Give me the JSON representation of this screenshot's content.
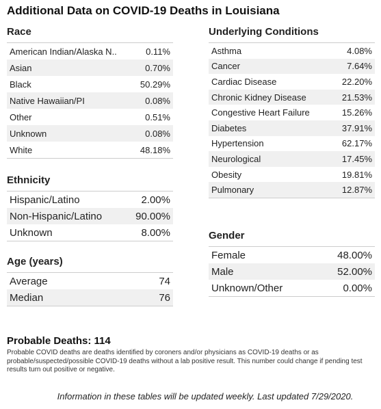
{
  "title": "Additional Data on COVID-19 Deaths in Louisiana",
  "race": {
    "title": "Race",
    "rows": [
      [
        "American Indian/Alaska N..",
        "0.11%"
      ],
      [
        "Asian",
        "0.70%"
      ],
      [
        "Black",
        "50.29%"
      ],
      [
        "Native Hawaiian/PI",
        "0.08%"
      ],
      [
        "Other",
        "0.51%"
      ],
      [
        "Unknown",
        "0.08%"
      ],
      [
        "White",
        "48.18%"
      ]
    ]
  },
  "ethnicity": {
    "title": "Ethnicity",
    "rows": [
      [
        "Hispanic/Latino",
        "2.00%"
      ],
      [
        "Non-Hispanic/Latino",
        "90.00%"
      ],
      [
        "Unknown",
        "8.00%"
      ]
    ]
  },
  "age": {
    "title": "Age (years)",
    "rows": [
      [
        "Average",
        "74"
      ],
      [
        "Median",
        "76"
      ]
    ]
  },
  "conditions": {
    "title": "Underlying Conditions",
    "rows": [
      [
        "Asthma",
        "4.08%"
      ],
      [
        "Cancer",
        "7.64%"
      ],
      [
        "Cardiac Disease",
        "22.20%"
      ],
      [
        "Chronic Kidney Disease",
        "21.53%"
      ],
      [
        "Congestive Heart Failure",
        "15.26%"
      ],
      [
        "Diabetes",
        "37.91%"
      ],
      [
        "Hypertension",
        "62.17%"
      ],
      [
        "Neurological",
        "17.45%"
      ],
      [
        "Obesity",
        "19.81%"
      ],
      [
        "Pulmonary",
        "12.87%"
      ]
    ]
  },
  "gender": {
    "title": "Gender",
    "rows": [
      [
        "Female",
        "48.00%"
      ],
      [
        "Male",
        "52.00%"
      ],
      [
        "Unknown/Other",
        "0.00%"
      ]
    ]
  },
  "probable": {
    "title": "Probable Deaths: 114",
    "note": "Probable COVID deaths are deaths identified by coroners and/or physicians as COVID-19 deaths or as probable/suspected/possible COVID-19 deaths without a lab positive result. This number could change if pending test results turn out positive or negative."
  },
  "footer": "Information in these tables will be updated weekly. Last updated 7/29/2020."
}
